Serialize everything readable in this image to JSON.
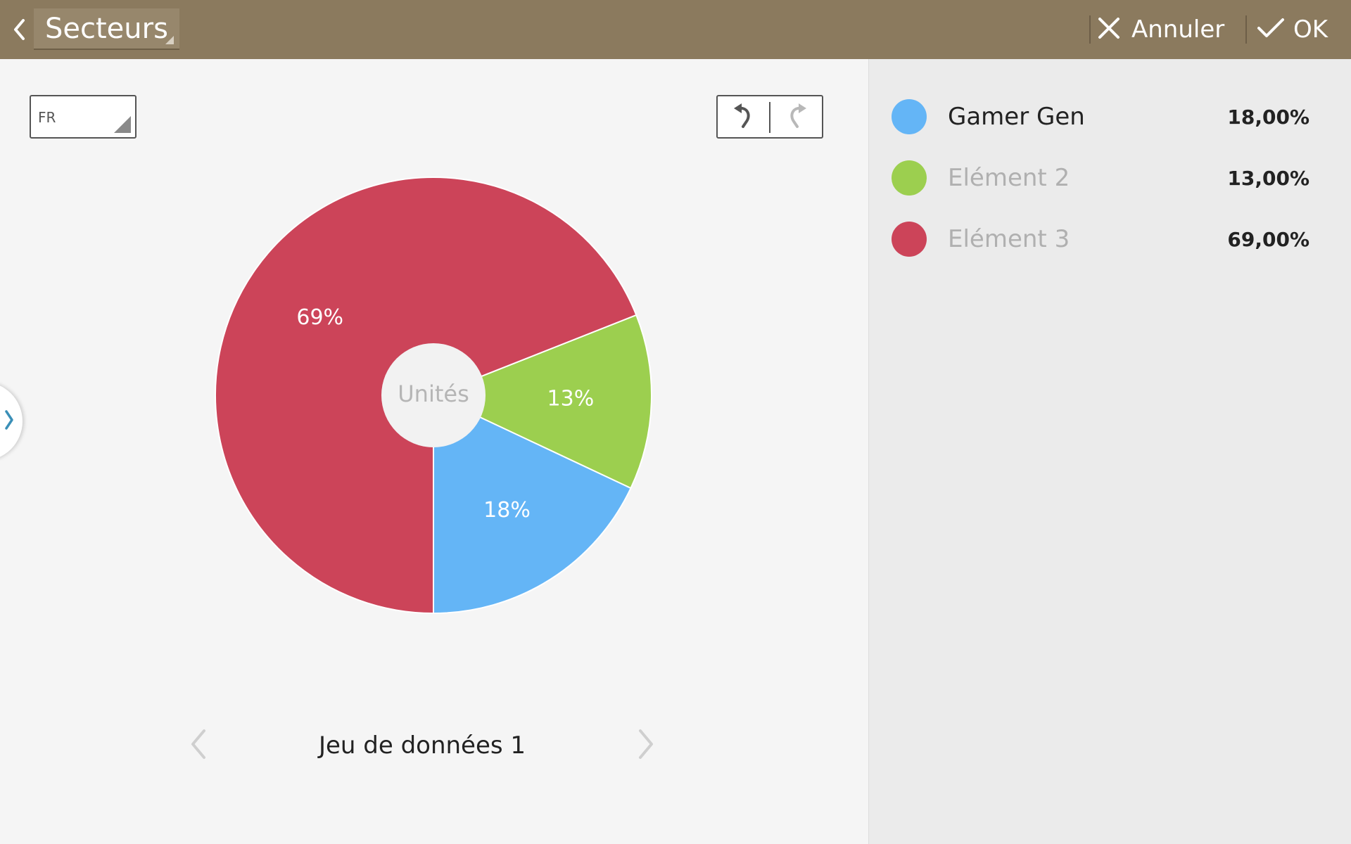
{
  "header": {
    "title": "Secteurs",
    "cancel_label": "Annuler",
    "ok_label": "OK",
    "background_color": "#8b7a5e"
  },
  "toolbar": {
    "language": "FR",
    "undo_icon": "undo-icon",
    "redo_icon": "redo-icon"
  },
  "chart_data": {
    "type": "pie",
    "center_label": "Unités",
    "slices": [
      {
        "name": "Gamer Gen",
        "value": 18,
        "label": "18%",
        "color": "#64b5f6"
      },
      {
        "name": "Elément 2",
        "value": 13,
        "label": "13%",
        "color": "#9ccf4f"
      },
      {
        "name": "Elément 3",
        "value": 69,
        "label": "69%",
        "color": "#cc4459"
      }
    ]
  },
  "dataset": {
    "label": "Jeu de données 1"
  },
  "legend": {
    "items": [
      {
        "name": "Gamer Gen",
        "value": "18,00%",
        "color": "#64b5f6",
        "style": "active"
      },
      {
        "name": "Elément 2",
        "value": "13,00%",
        "color": "#9ccf4f",
        "style": "placeholder"
      },
      {
        "name": "Elément 3",
        "value": "69,00%",
        "color": "#cc4459",
        "style": "placeholder"
      }
    ]
  }
}
